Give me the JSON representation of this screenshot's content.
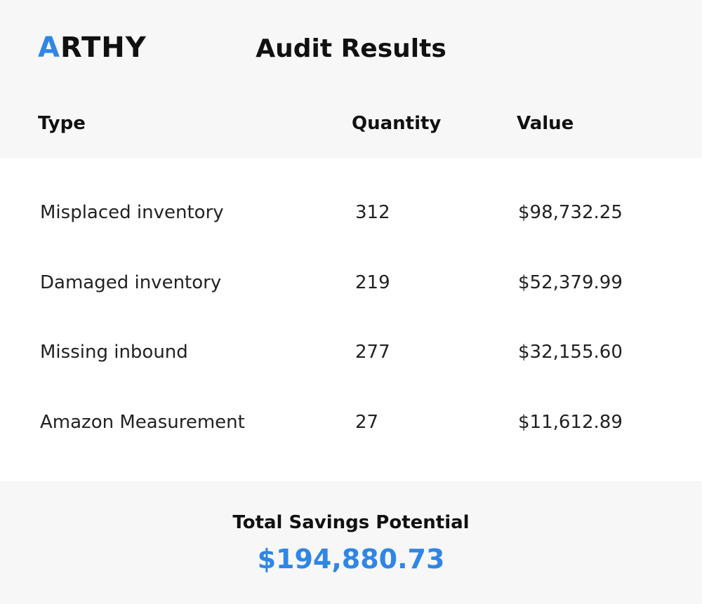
{
  "header": {
    "logo": "ARTHY",
    "title": "Audit Results"
  },
  "table": {
    "columns": [
      "Type",
      "Quantity",
      "Value"
    ],
    "rows": [
      [
        "Misplaced inventory",
        "312",
        "$98,732.25"
      ],
      [
        "Damaged inventory",
        "219",
        "$52,379.99"
      ],
      [
        "Missing inbound",
        "277",
        "$32,155.60"
      ],
      [
        "Amazon Measurement",
        "27",
        "$11,612.89"
      ]
    ]
  },
  "footer": {
    "label": "Total Savings Potential",
    "total": "$194,880.73"
  }
}
